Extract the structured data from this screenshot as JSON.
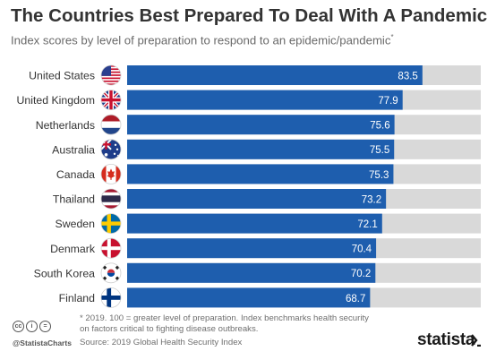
{
  "header": {
    "title": "The Countries Best Prepared To Deal With A Pandemic",
    "subtitle": "Index scores by level of preparation to respond to an epidemic/pandemic",
    "subtitle_mark": "*"
  },
  "chart_data": {
    "type": "bar",
    "orientation": "horizontal",
    "categories": [
      "United States",
      "United Kingdom",
      "Netherlands",
      "Australia",
      "Canada",
      "Thailand",
      "Sweden",
      "Denmark",
      "South Korea",
      "Finland"
    ],
    "values": [
      83.5,
      77.9,
      75.6,
      75.5,
      75.3,
      73.2,
      72.1,
      70.4,
      70.2,
      68.7
    ],
    "labels": [
      "83.5",
      "77.9",
      "75.6",
      "75.5",
      "75.3",
      "73.2",
      "72.1",
      "70.4",
      "70.2",
      "68.7"
    ],
    "xlim": [
      0,
      100
    ],
    "flags": [
      "us-flag-icon",
      "uk-flag-icon",
      "netherlands-flag-icon",
      "australia-flag-icon",
      "canada-flag-icon",
      "thailand-flag-icon",
      "sweden-flag-icon",
      "denmark-flag-icon",
      "south-korea-flag-icon",
      "finland-flag-icon"
    ],
    "colors": {
      "bar": "#1e5eae",
      "track": "#d9d9d9",
      "value_label": "#ffffff"
    }
  },
  "footer": {
    "note": "* 2019. 100 = greater level of preparation. Index benchmarks health security on factors critical to fighting disease outbreaks.",
    "source": "Source: 2019 Global Health Security Index",
    "handle": "@StatistaCharts",
    "brand": "statista",
    "cc_icons": [
      "cc",
      "i",
      "="
    ]
  }
}
